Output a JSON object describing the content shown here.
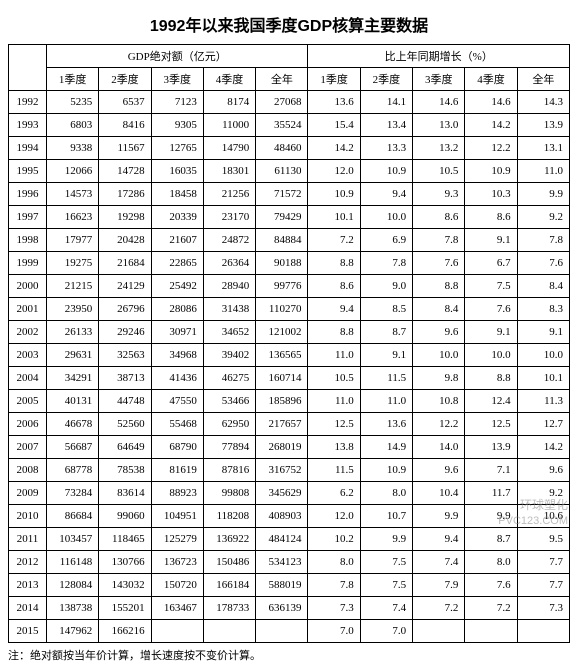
{
  "title": "1992年以来我国季度GDP核算主要数据",
  "group_abs": "GDP绝对额（亿元）",
  "group_growth": "比上年同期增长（%）",
  "cols": {
    "q1": "1季度",
    "q2": "2季度",
    "q3": "3季度",
    "q4": "4季度",
    "year": "全年"
  },
  "note": "注：绝对额按当年价计算，增长速度按不变价计算。",
  "watermark": {
    "cn": "环球塑化",
    "en": "PVC123.COM"
  },
  "rows": [
    {
      "y": "1992",
      "a": [
        "5235",
        "6537",
        "7123",
        "8174",
        "27068"
      ],
      "g": [
        "13.6",
        "14.1",
        "14.6",
        "14.6",
        "14.3"
      ]
    },
    {
      "y": "1993",
      "a": [
        "6803",
        "8416",
        "9305",
        "11000",
        "35524"
      ],
      "g": [
        "15.4",
        "13.4",
        "13.0",
        "14.2",
        "13.9"
      ]
    },
    {
      "y": "1994",
      "a": [
        "9338",
        "11567",
        "12765",
        "14790",
        "48460"
      ],
      "g": [
        "14.2",
        "13.3",
        "13.2",
        "12.2",
        "13.1"
      ]
    },
    {
      "y": "1995",
      "a": [
        "12066",
        "14728",
        "16035",
        "18301",
        "61130"
      ],
      "g": [
        "12.0",
        "10.9",
        "10.5",
        "10.9",
        "11.0"
      ]
    },
    {
      "y": "1996",
      "a": [
        "14573",
        "17286",
        "18458",
        "21256",
        "71572"
      ],
      "g": [
        "10.9",
        "9.4",
        "9.3",
        "10.3",
        "9.9"
      ]
    },
    {
      "y": "1997",
      "a": [
        "16623",
        "19298",
        "20339",
        "23170",
        "79429"
      ],
      "g": [
        "10.1",
        "10.0",
        "8.6",
        "8.6",
        "9.2"
      ]
    },
    {
      "y": "1998",
      "a": [
        "17977",
        "20428",
        "21607",
        "24872",
        "84884"
      ],
      "g": [
        "7.2",
        "6.9",
        "7.8",
        "9.1",
        "7.8"
      ]
    },
    {
      "y": "1999",
      "a": [
        "19275",
        "21684",
        "22865",
        "26364",
        "90188"
      ],
      "g": [
        "8.8",
        "7.8",
        "7.6",
        "6.7",
        "7.6"
      ]
    },
    {
      "y": "2000",
      "a": [
        "21215",
        "24129",
        "25492",
        "28940",
        "99776"
      ],
      "g": [
        "8.6",
        "9.0",
        "8.8",
        "7.5",
        "8.4"
      ]
    },
    {
      "y": "2001",
      "a": [
        "23950",
        "26796",
        "28086",
        "31438",
        "110270"
      ],
      "g": [
        "9.4",
        "8.5",
        "8.4",
        "7.6",
        "8.3"
      ]
    },
    {
      "y": "2002",
      "a": [
        "26133",
        "29246",
        "30971",
        "34652",
        "121002"
      ],
      "g": [
        "8.8",
        "8.7",
        "9.6",
        "9.1",
        "9.1"
      ]
    },
    {
      "y": "2003",
      "a": [
        "29631",
        "32563",
        "34968",
        "39402",
        "136565"
      ],
      "g": [
        "11.0",
        "9.1",
        "10.0",
        "10.0",
        "10.0"
      ]
    },
    {
      "y": "2004",
      "a": [
        "34291",
        "38713",
        "41436",
        "46275",
        "160714"
      ],
      "g": [
        "10.5",
        "11.5",
        "9.8",
        "8.8",
        "10.1"
      ]
    },
    {
      "y": "2005",
      "a": [
        "40131",
        "44748",
        "47550",
        "53466",
        "185896"
      ],
      "g": [
        "11.0",
        "11.0",
        "10.8",
        "12.4",
        "11.3"
      ]
    },
    {
      "y": "2006",
      "a": [
        "46678",
        "52560",
        "55468",
        "62950",
        "217657"
      ],
      "g": [
        "12.5",
        "13.6",
        "12.2",
        "12.5",
        "12.7"
      ]
    },
    {
      "y": "2007",
      "a": [
        "56687",
        "64649",
        "68790",
        "77894",
        "268019"
      ],
      "g": [
        "13.8",
        "14.9",
        "14.0",
        "13.9",
        "14.2"
      ]
    },
    {
      "y": "2008",
      "a": [
        "68778",
        "78538",
        "81619",
        "87816",
        "316752"
      ],
      "g": [
        "11.5",
        "10.9",
        "9.6",
        "7.1",
        "9.6"
      ]
    },
    {
      "y": "2009",
      "a": [
        "73284",
        "83614",
        "88923",
        "99808",
        "345629"
      ],
      "g": [
        "6.2",
        "8.0",
        "10.4",
        "11.7",
        "9.2"
      ]
    },
    {
      "y": "2010",
      "a": [
        "86684",
        "99060",
        "104951",
        "118208",
        "408903"
      ],
      "g": [
        "12.0",
        "10.7",
        "9.9",
        "9.9",
        "10.6"
      ]
    },
    {
      "y": "2011",
      "a": [
        "103457",
        "118465",
        "125279",
        "136922",
        "484124"
      ],
      "g": [
        "10.2",
        "9.9",
        "9.4",
        "8.7",
        "9.5"
      ]
    },
    {
      "y": "2012",
      "a": [
        "116148",
        "130766",
        "136723",
        "150486",
        "534123"
      ],
      "g": [
        "8.0",
        "7.5",
        "7.4",
        "8.0",
        "7.7"
      ]
    },
    {
      "y": "2013",
      "a": [
        "128084",
        "143032",
        "150720",
        "166184",
        "588019"
      ],
      "g": [
        "7.8",
        "7.5",
        "7.9",
        "7.6",
        "7.7"
      ]
    },
    {
      "y": "2014",
      "a": [
        "138738",
        "155201",
        "163467",
        "178733",
        "636139"
      ],
      "g": [
        "7.3",
        "7.4",
        "7.2",
        "7.2",
        "7.3"
      ]
    },
    {
      "y": "2015",
      "a": [
        "147962",
        "166216",
        "",
        "",
        ""
      ],
      "g": [
        "7.0",
        "7.0",
        "",
        "",
        ""
      ]
    }
  ]
}
